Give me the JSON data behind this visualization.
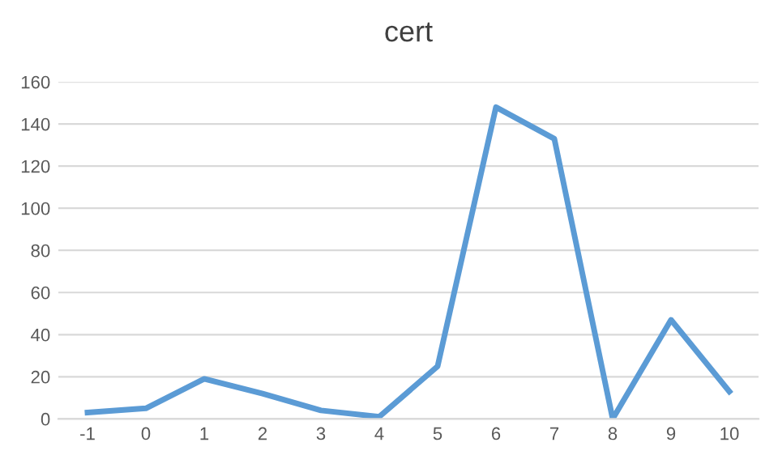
{
  "chart_data": {
    "type": "line",
    "title": "cert",
    "categories": [
      "-1",
      "0",
      "1",
      "2",
      "3",
      "4",
      "5",
      "6",
      "7",
      "8",
      "9",
      "10"
    ],
    "series": [
      {
        "color": "#5b9bd5",
        "values": [
          3,
          5,
          19,
          12,
          4,
          1,
          25,
          148,
          133,
          0,
          47,
          13
        ]
      }
    ],
    "ylim": [
      0,
      160
    ],
    "yticks": [
      0,
      20,
      40,
      60,
      80,
      100,
      120,
      140,
      160
    ],
    "grid": "y",
    "legend": false,
    "marker": "none",
    "line_style": "solid"
  }
}
